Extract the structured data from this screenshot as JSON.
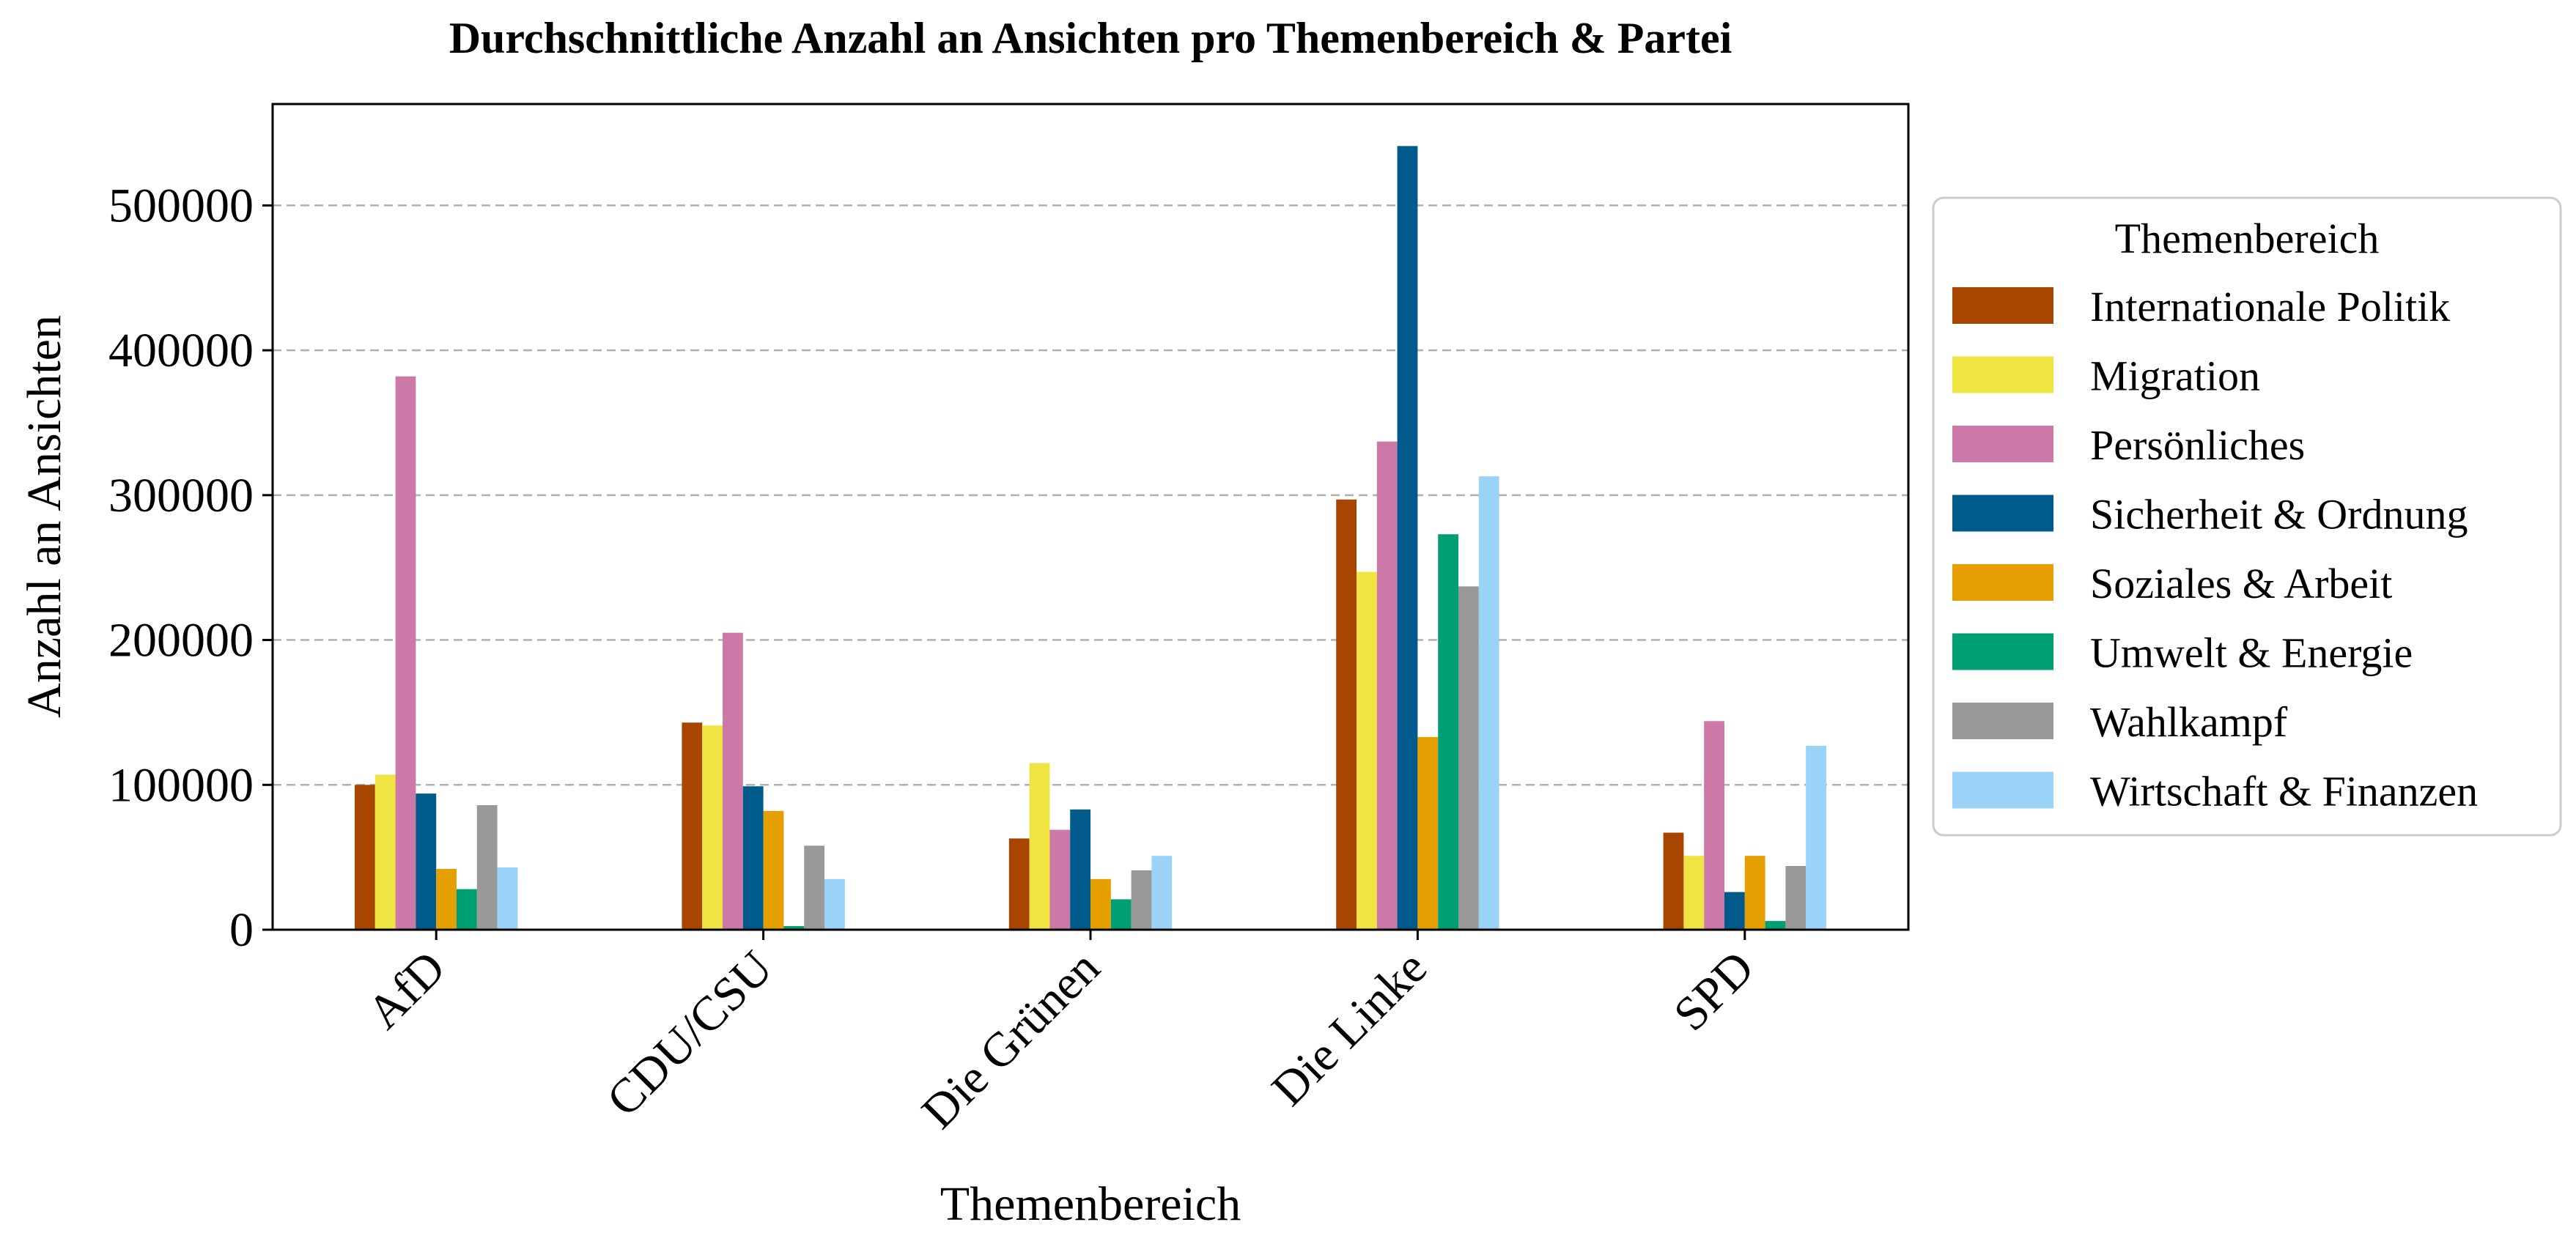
{
  "chart_data": {
    "type": "bar",
    "title": "Durchschnittliche Anzahl an Ansichten pro Themenbereich & Partei",
    "xlabel": "Themenbereich",
    "ylabel": "Anzahl an Ansichten",
    "ylim": [
      0,
      570000
    ],
    "yticks": [
      0,
      100000,
      200000,
      300000,
      400000,
      500000
    ],
    "ytick_labels": [
      "0",
      "100000",
      "200000",
      "300000",
      "400000",
      "500000"
    ],
    "grid": "y, dashed",
    "legend_position": "right outside",
    "legend_title": "Themenbereich",
    "categories": [
      "AfD",
      "CDU/CSU",
      "Die Grünen",
      "Die Linke",
      "SPD"
    ],
    "series": [
      {
        "name": "Internationale Politik",
        "color": "#a84500",
        "values": [
          100000,
          143000,
          63000,
          297000,
          67000
        ]
      },
      {
        "name": "Migration",
        "color": "#f0e442",
        "values": [
          107000,
          141000,
          115000,
          247000,
          51000
        ]
      },
      {
        "name": "Persönliches",
        "color": "#cc79a7",
        "values": [
          382000,
          205000,
          69000,
          337000,
          144000
        ]
      },
      {
        "name": "Sicherheit & Ordnung",
        "color": "#005a8c",
        "values": [
          94000,
          99000,
          83000,
          541000,
          26000
        ]
      },
      {
        "name": "Soziales & Arbeit",
        "color": "#e69f00",
        "values": [
          42000,
          82000,
          35000,
          133000,
          51000
        ]
      },
      {
        "name": "Umwelt & Energie",
        "color": "#009e73",
        "values": [
          28000,
          2500,
          21000,
          273000,
          6000
        ]
      },
      {
        "name": "Wahlkampf",
        "color": "#999999",
        "values": [
          86000,
          58000,
          41000,
          237000,
          44000
        ]
      },
      {
        "name": "Wirtschaft & Finanzen",
        "color": "#9ad3f7",
        "values": [
          43000,
          35000,
          51000,
          313000,
          127000
        ]
      }
    ]
  }
}
